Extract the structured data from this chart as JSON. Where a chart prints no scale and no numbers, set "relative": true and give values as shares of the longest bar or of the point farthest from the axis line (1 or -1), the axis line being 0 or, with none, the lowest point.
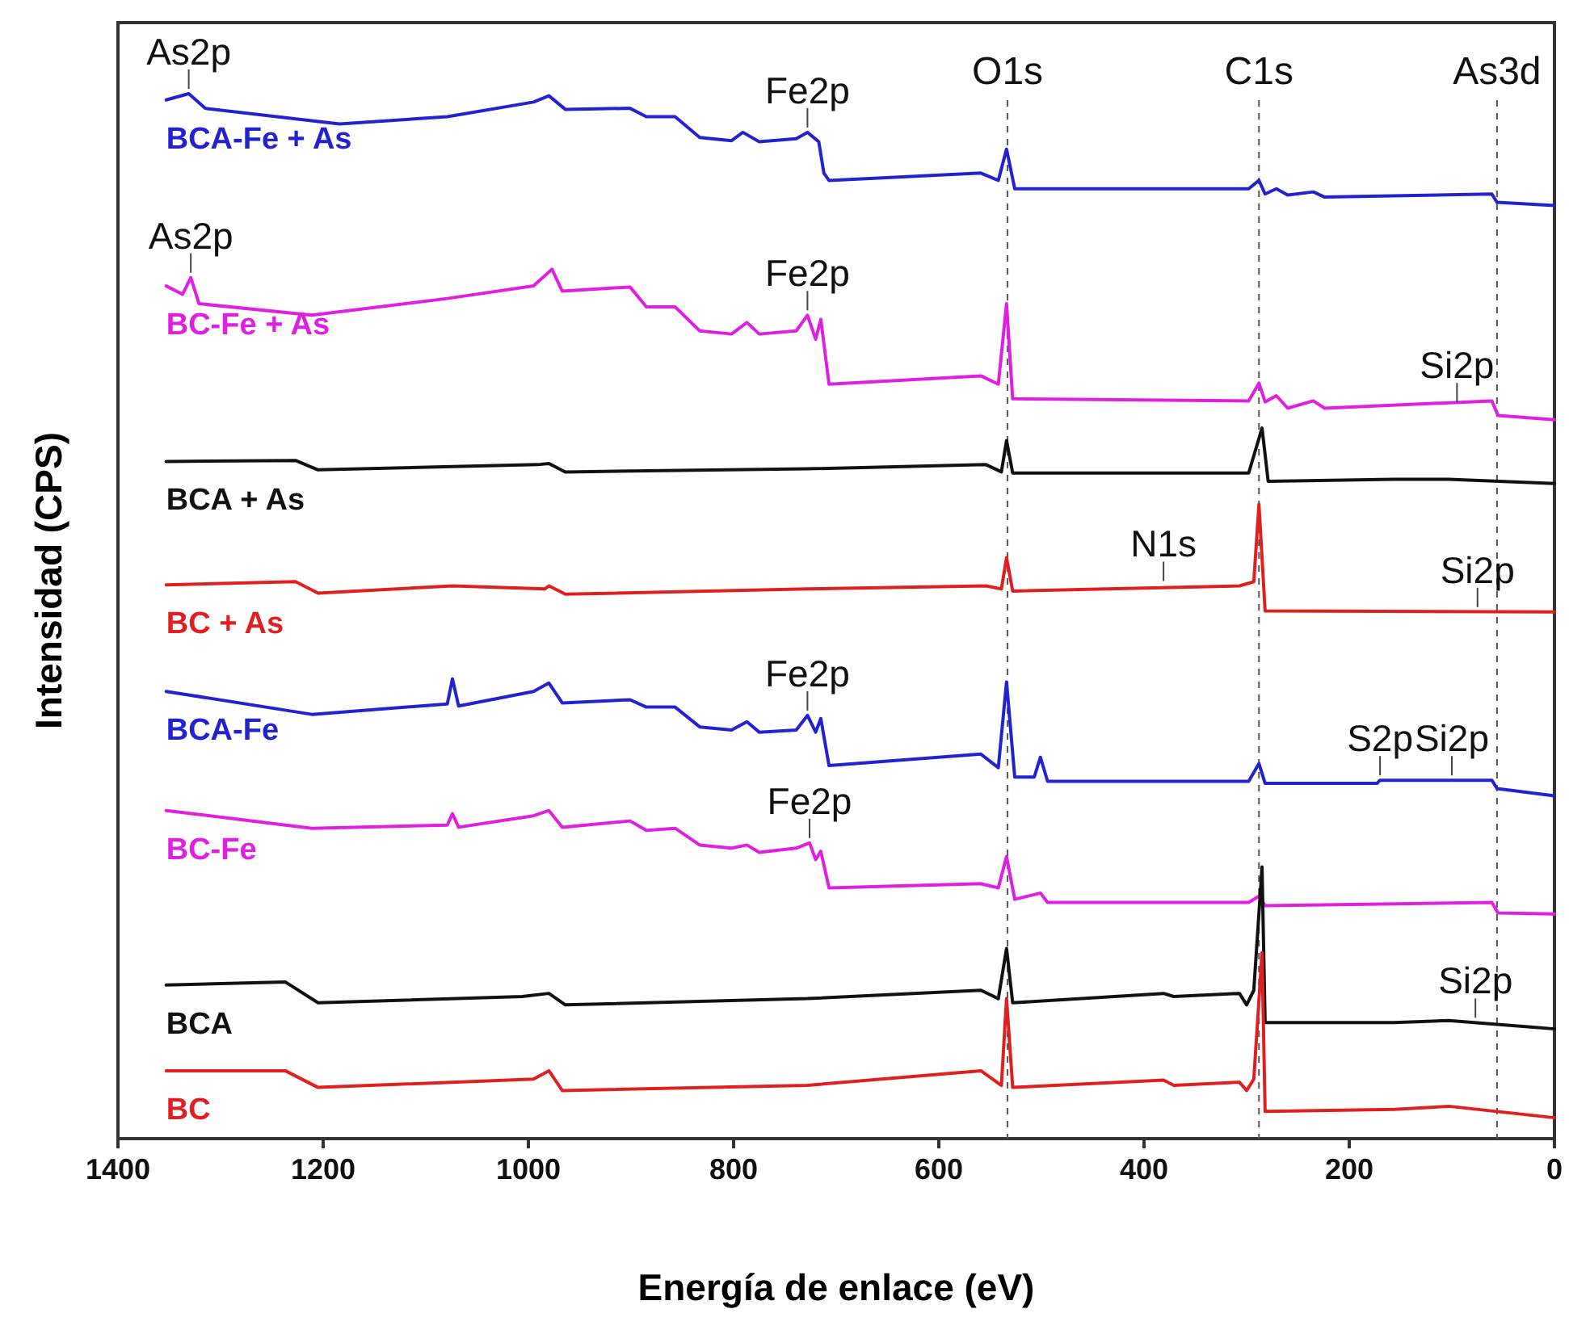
{
  "chart_data": {
    "type": "line",
    "xlabel": "Energía de enlace (eV)",
    "ylabel": "Intensidad (CPS)",
    "relative": true,
    "tick_labels": "x",
    "xlim": [
      1400,
      0
    ],
    "xticks": [
      1400,
      1200,
      1000,
      800,
      600,
      400,
      200,
      0
    ],
    "series": [
      {
        "name": "BCA-Fe + As",
        "color": "#2222d0",
        "x": [
          1353,
          1331,
          1315,
          1184,
          1079,
          995,
          980,
          964,
          901,
          885,
          857,
          833,
          802,
          791,
          775,
          739,
          728,
          717,
          712,
          707,
          559,
          542,
          534,
          526,
          298,
          288,
          282,
          271,
          260,
          235,
          224,
          61,
          56,
          0
        ],
        "values": [
          0.994,
          1.0,
          0.986,
          0.971,
          0.978,
          0.992,
          0.998,
          0.985,
          0.986,
          0.978,
          0.978,
          0.958,
          0.955,
          0.963,
          0.954,
          0.957,
          0.963,
          0.954,
          0.924,
          0.917,
          0.924,
          0.917,
          0.947,
          0.909,
          0.909,
          0.917,
          0.904,
          0.909,
          0.903,
          0.906,
          0.901,
          0.904,
          0.896,
          0.893
        ]
      },
      {
        "name": "BC-Fe + As",
        "color": "#e020e0",
        "x": [
          1353,
          1337,
          1329,
          1321,
          1211,
          1079,
          995,
          977,
          967,
          901,
          885,
          857,
          833,
          802,
          787,
          775,
          739,
          728,
          720,
          715,
          707,
          559,
          542,
          534,
          528,
          298,
          288,
          282,
          271,
          260,
          235,
          224,
          61,
          55,
          0
        ],
        "values": [
          0.816,
          0.808,
          0.824,
          0.799,
          0.788,
          0.804,
          0.816,
          0.832,
          0.811,
          0.815,
          0.796,
          0.796,
          0.773,
          0.77,
          0.781,
          0.77,
          0.773,
          0.788,
          0.765,
          0.784,
          0.722,
          0.73,
          0.722,
          0.799,
          0.708,
          0.706,
          0.723,
          0.705,
          0.711,
          0.699,
          0.706,
          0.699,
          0.706,
          0.692,
          0.688
        ]
      },
      {
        "name": "BCA + As",
        "color": "#111111",
        "x": [
          1353,
          1227,
          1205,
          991,
          980,
          964,
          728,
          554,
          539,
          534,
          528,
          298,
          285,
          279,
          156,
          103,
          0
        ],
        "values": [
          0.648,
          0.649,
          0.64,
          0.645,
          0.646,
          0.638,
          0.641,
          0.645,
          0.638,
          0.668,
          0.637,
          0.637,
          0.68,
          0.629,
          0.631,
          0.631,
          0.627
        ]
      },
      {
        "name": "BC + As",
        "color": "#e02020",
        "x": [
          1353,
          1227,
          1205,
          1074,
          984,
          980,
          964,
          728,
          554,
          539,
          534,
          528,
          307,
          293,
          288,
          282,
          0
        ],
        "values": [
          0.53,
          0.533,
          0.522,
          0.529,
          0.526,
          0.529,
          0.521,
          0.526,
          0.529,
          0.526,
          0.556,
          0.524,
          0.529,
          0.533,
          0.607,
          0.505,
          0.504
        ]
      },
      {
        "name": "BCA-Fe",
        "color": "#2222d0",
        "x": [
          1353,
          1211,
          1079,
          1074,
          1068,
          995,
          980,
          967,
          901,
          885,
          857,
          833,
          802,
          787,
          775,
          739,
          728,
          720,
          715,
          707,
          559,
          542,
          534,
          526,
          507,
          501,
          494,
          298,
          288,
          282,
          173,
          170,
          103,
          61,
          56,
          0
        ],
        "values": [
          0.428,
          0.406,
          0.416,
          0.44,
          0.414,
          0.428,
          0.436,
          0.417,
          0.42,
          0.413,
          0.413,
          0.394,
          0.391,
          0.399,
          0.389,
          0.391,
          0.405,
          0.389,
          0.402,
          0.357,
          0.368,
          0.355,
          0.437,
          0.346,
          0.346,
          0.365,
          0.342,
          0.342,
          0.359,
          0.34,
          0.34,
          0.343,
          0.343,
          0.343,
          0.335,
          0.328
        ]
      },
      {
        "name": "BC-Fe",
        "color": "#e020e0",
        "x": [
          1353,
          1211,
          1079,
          1074,
          1068,
          995,
          980,
          967,
          901,
          885,
          857,
          833,
          802,
          787,
          775,
          739,
          726,
          720,
          715,
          707,
          559,
          542,
          534,
          526,
          501,
          494,
          298,
          288,
          282,
          61,
          55,
          0
        ],
        "values": [
          0.314,
          0.297,
          0.3,
          0.311,
          0.298,
          0.309,
          0.314,
          0.298,
          0.304,
          0.295,
          0.297,
          0.281,
          0.278,
          0.281,
          0.274,
          0.278,
          0.283,
          0.267,
          0.275,
          0.24,
          0.244,
          0.24,
          0.27,
          0.229,
          0.235,
          0.226,
          0.226,
          0.232,
          0.223,
          0.226,
          0.216,
          0.215
        ]
      },
      {
        "name": "BCA",
        "color": "#111111",
        "x": [
          1353,
          1237,
          1205,
          1006,
          980,
          964,
          728,
          559,
          542,
          534,
          528,
          381,
          371,
          307,
          300,
          293,
          285,
          282,
          156,
          103,
          0
        ],
        "values": [
          0.147,
          0.15,
          0.13,
          0.136,
          0.139,
          0.128,
          0.134,
          0.142,
          0.134,
          0.182,
          0.13,
          0.139,
          0.136,
          0.139,
          0.128,
          0.142,
          0.26,
          0.111,
          0.111,
          0.113,
          0.105
        ]
      },
      {
        "name": "BC",
        "color": "#e02020",
        "x": [
          1353,
          1237,
          1205,
          995,
          980,
          967,
          728,
          559,
          539,
          534,
          528,
          381,
          371,
          307,
          300,
          293,
          285,
          282,
          156,
          103,
          0
        ],
        "values": [
          0.065,
          0.065,
          0.049,
          0.057,
          0.065,
          0.046,
          0.051,
          0.065,
          0.051,
          0.134,
          0.049,
          0.056,
          0.051,
          0.054,
          0.046,
          0.057,
          0.178,
          0.026,
          0.028,
          0.031,
          0.02
        ]
      }
    ],
    "ref_lines": [
      {
        "axis": "x",
        "value": 533,
        "label": "O1s",
        "line_style": "dashed",
        "color": "#555555"
      },
      {
        "axis": "x",
        "value": 288,
        "label": "C1s",
        "line_style": "dashed",
        "color": "#555555"
      },
      {
        "axis": "x",
        "value": 56,
        "label": "As3d",
        "line_style": "dashed",
        "color": "#555555"
      }
    ],
    "annotations": [
      {
        "text": "As2p",
        "x": 1331,
        "y": 1.0
      },
      {
        "text": "As2p",
        "x": 1329,
        "y": 0.824
      },
      {
        "text": "Fe2p",
        "x": 728,
        "y": 0.963
      },
      {
        "text": "Fe2p",
        "x": 728,
        "y": 0.788
      },
      {
        "text": "Fe2p",
        "x": 728,
        "y": 0.405
      },
      {
        "text": "Fe2p",
        "x": 726,
        "y": 0.283
      },
      {
        "text": "Si2p",
        "x": 95,
        "y": 0.7
      },
      {
        "text": "N1s",
        "x": 381,
        "y": 0.529
      },
      {
        "text": "Si2p",
        "x": 75,
        "y": 0.504
      },
      {
        "text": "S2p",
        "x": 170,
        "y": 0.343
      },
      {
        "text": "Si2p",
        "x": 100,
        "y": 0.343
      },
      {
        "text": "Si2p",
        "x": 77,
        "y": 0.111
      }
    ]
  }
}
